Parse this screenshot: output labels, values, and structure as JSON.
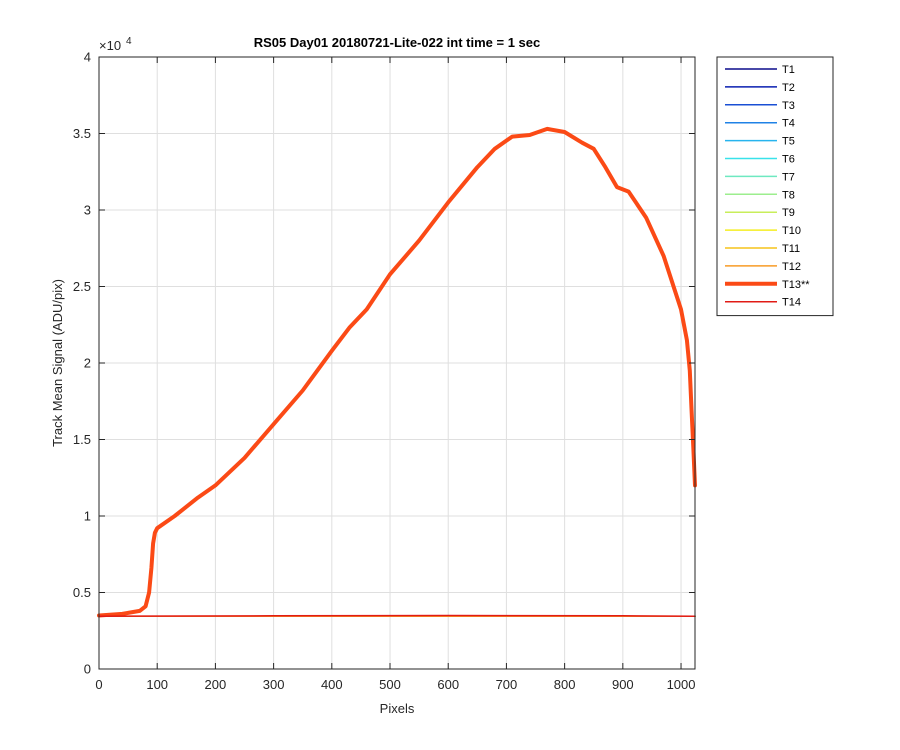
{
  "chart_data": {
    "type": "line",
    "title": "RS05 Day01 20180721-Lite-022 int time = 1 sec",
    "xlabel": "Pixels",
    "ylabel": "Track Mean Signal (ADU/pix)",
    "y_exponent_label": "×10",
    "y_exponent_power": "4",
    "xlim": [
      0,
      1024
    ],
    "ylim": [
      0,
      40000
    ],
    "x_ticks": [
      0,
      100,
      200,
      300,
      400,
      500,
      600,
      700,
      800,
      900,
      1000
    ],
    "x_tick_labels": [
      "0",
      "100",
      "200",
      "300",
      "400",
      "500",
      "600",
      "700",
      "800",
      "900",
      "1000"
    ],
    "y_ticks": [
      0,
      5000,
      10000,
      15000,
      20000,
      25000,
      30000,
      35000,
      40000
    ],
    "y_tick_labels": [
      "0",
      "0.5",
      "1",
      "1.5",
      "2",
      "2.5",
      "3",
      "3.5",
      "4"
    ],
    "grid": true,
    "legend_position": "outside-right-top",
    "series": [
      {
        "name": "T1",
        "color": "#0c0c8c",
        "width": 1.5,
        "points": [
          [
            0,
            3450
          ],
          [
            1024,
            3450
          ]
        ]
      },
      {
        "name": "T2",
        "color": "#0a1fb0",
        "width": 1.5,
        "points": [
          [
            0,
            3450
          ],
          [
            1024,
            3450
          ]
        ]
      },
      {
        "name": "T3",
        "color": "#1a4fd4",
        "width": 1.5,
        "points": [
          [
            0,
            3450
          ],
          [
            1024,
            3450
          ]
        ]
      },
      {
        "name": "T4",
        "color": "#1f82e6",
        "width": 1.5,
        "points": [
          [
            0,
            3450
          ],
          [
            1024,
            3450
          ]
        ]
      },
      {
        "name": "T5",
        "color": "#27b4ee",
        "width": 1.5,
        "points": [
          [
            0,
            3450
          ],
          [
            1024,
            3450
          ]
        ]
      },
      {
        "name": "T6",
        "color": "#39e2ea",
        "width": 1.5,
        "points": [
          [
            0,
            3450
          ],
          [
            1024,
            3450
          ]
        ]
      },
      {
        "name": "T7",
        "color": "#6ee9c0",
        "width": 1.5,
        "points": [
          [
            0,
            3450
          ],
          [
            1024,
            3450
          ]
        ]
      },
      {
        "name": "T8",
        "color": "#9cee8e",
        "width": 1.5,
        "points": [
          [
            0,
            3450
          ],
          [
            1024,
            3450
          ]
        ]
      },
      {
        "name": "T9",
        "color": "#c8ee5a",
        "width": 1.5,
        "points": [
          [
            0,
            3450
          ],
          [
            1024,
            3450
          ]
        ]
      },
      {
        "name": "T10",
        "color": "#f4ee22",
        "width": 1.5,
        "points": [
          [
            0,
            3450
          ],
          [
            1024,
            3450
          ]
        ]
      },
      {
        "name": "T11",
        "color": "#f6c41a",
        "width": 1.5,
        "points": [
          [
            0,
            3450
          ],
          [
            1024,
            3450
          ]
        ]
      },
      {
        "name": "T12",
        "color": "#f89b26",
        "width": 1.5,
        "points": [
          [
            0,
            3450
          ],
          [
            1024,
            3450
          ]
        ]
      },
      {
        "name": "T13**",
        "color": "#fb4a16",
        "width": 4,
        "points": [
          [
            0,
            3500
          ],
          [
            40,
            3600
          ],
          [
            70,
            3800
          ],
          [
            80,
            4100
          ],
          [
            86,
            5000
          ],
          [
            90,
            6600
          ],
          [
            93,
            8200
          ],
          [
            96,
            8900
          ],
          [
            100,
            9200
          ],
          [
            130,
            10000
          ],
          [
            170,
            11200
          ],
          [
            200,
            12000
          ],
          [
            250,
            13800
          ],
          [
            300,
            16000
          ],
          [
            350,
            18200
          ],
          [
            400,
            20800
          ],
          [
            430,
            22300
          ],
          [
            460,
            23500
          ],
          [
            500,
            25800
          ],
          [
            550,
            28000
          ],
          [
            600,
            30500
          ],
          [
            650,
            32800
          ],
          [
            680,
            34000
          ],
          [
            710,
            34800
          ],
          [
            740,
            34900
          ],
          [
            770,
            35300
          ],
          [
            800,
            35100
          ],
          [
            830,
            34400
          ],
          [
            850,
            34000
          ],
          [
            870,
            32800
          ],
          [
            890,
            31500
          ],
          [
            910,
            31200
          ],
          [
            940,
            29500
          ],
          [
            970,
            27000
          ],
          [
            1000,
            23500
          ],
          [
            1010,
            21500
          ],
          [
            1015,
            19500
          ],
          [
            1018,
            17000
          ],
          [
            1021,
            14500
          ],
          [
            1024,
            12000
          ]
        ]
      },
      {
        "name": "T14",
        "color": "#e11b15",
        "width": 1.5,
        "points": [
          [
            0,
            3450
          ],
          [
            300,
            3480
          ],
          [
            600,
            3500
          ],
          [
            900,
            3480
          ],
          [
            1024,
            3450
          ]
        ]
      }
    ]
  }
}
